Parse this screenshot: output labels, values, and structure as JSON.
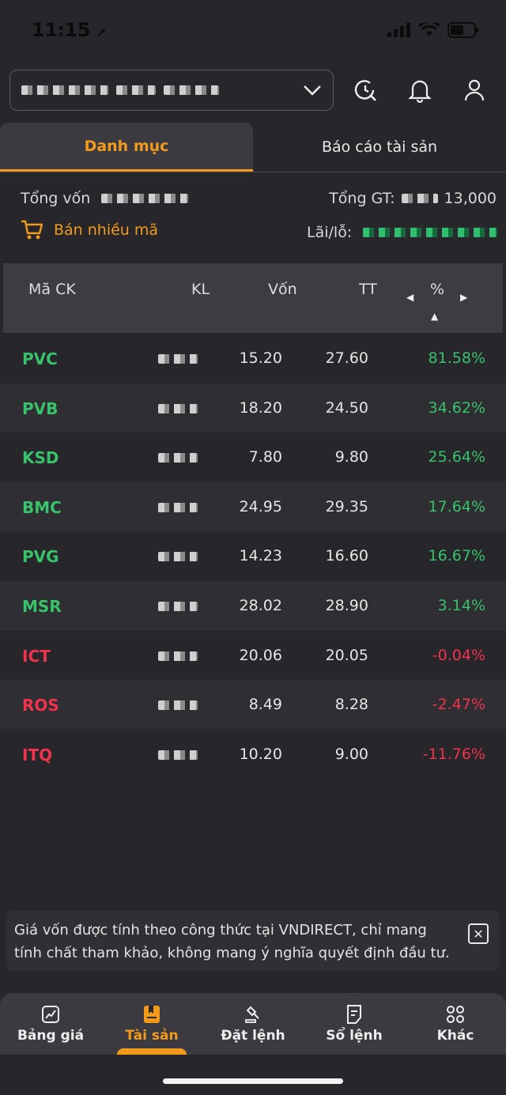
{
  "status_bar": {
    "time": "11:15"
  },
  "header": {
    "account_masked": "",
    "icons": [
      "history-search-icon",
      "bell-icon",
      "user-icon"
    ]
  },
  "tabs": [
    {
      "label": "Danh mục",
      "active": true
    },
    {
      "label": "Báo cáo tài sản",
      "active": false
    }
  ],
  "summary": {
    "total_capital_label": "Tổng vốn",
    "total_value_label": "Tổng GT:",
    "total_value_suffix": "13,000",
    "profit_loss_label": "Lãi/lỗ:",
    "sell_multiple_label": "Bán nhiều mã"
  },
  "table": {
    "columns": [
      "Mã CK",
      "KL",
      "Vốn",
      "TT",
      "%"
    ],
    "rows": [
      {
        "symbol": "PVC",
        "cost": "15.20",
        "market": "27.60",
        "pct": "81.58%",
        "trend": "up"
      },
      {
        "symbol": "PVB",
        "cost": "18.20",
        "market": "24.50",
        "pct": "34.62%",
        "trend": "up"
      },
      {
        "symbol": "KSD",
        "cost": "7.80",
        "market": "9.80",
        "pct": "25.64%",
        "trend": "up"
      },
      {
        "symbol": "BMC",
        "cost": "24.95",
        "market": "29.35",
        "pct": "17.64%",
        "trend": "up"
      },
      {
        "symbol": "PVG",
        "cost": "14.23",
        "market": "16.60",
        "pct": "16.67%",
        "trend": "up"
      },
      {
        "symbol": "MSR",
        "cost": "28.02",
        "market": "28.90",
        "pct": "3.14%",
        "trend": "up"
      },
      {
        "symbol": "ICT",
        "cost": "20.06",
        "market": "20.05",
        "pct": "-0.04%",
        "trend": "down"
      },
      {
        "symbol": "ROS",
        "cost": "8.49",
        "market": "8.28",
        "pct": "-2.47%",
        "trend": "down"
      },
      {
        "symbol": "ITQ",
        "cost": "10.20",
        "market": "9.00",
        "pct": "-11.76%",
        "trend": "down"
      }
    ]
  },
  "notice": {
    "text": "Giá vốn được tính theo công thức tại VNDIRECT, chỉ mang tính chất tham khảo, không mang ý nghĩa quyết định đầu tư."
  },
  "bottom_nav": [
    {
      "label": "Bảng giá",
      "icon": "chart-icon",
      "active": false
    },
    {
      "label": "Tài sản",
      "icon": "wallet-icon",
      "active": true
    },
    {
      "label": "Đặt lệnh",
      "icon": "gavel-icon",
      "active": false
    },
    {
      "label": "Sổ lệnh",
      "icon": "order-book-icon",
      "active": false
    },
    {
      "label": "Khác",
      "icon": "grid-icon",
      "active": false
    }
  ],
  "colors": {
    "accent": "#f29a1b",
    "up": "#37c26b",
    "down": "#f0324c",
    "background": "#26262b"
  }
}
